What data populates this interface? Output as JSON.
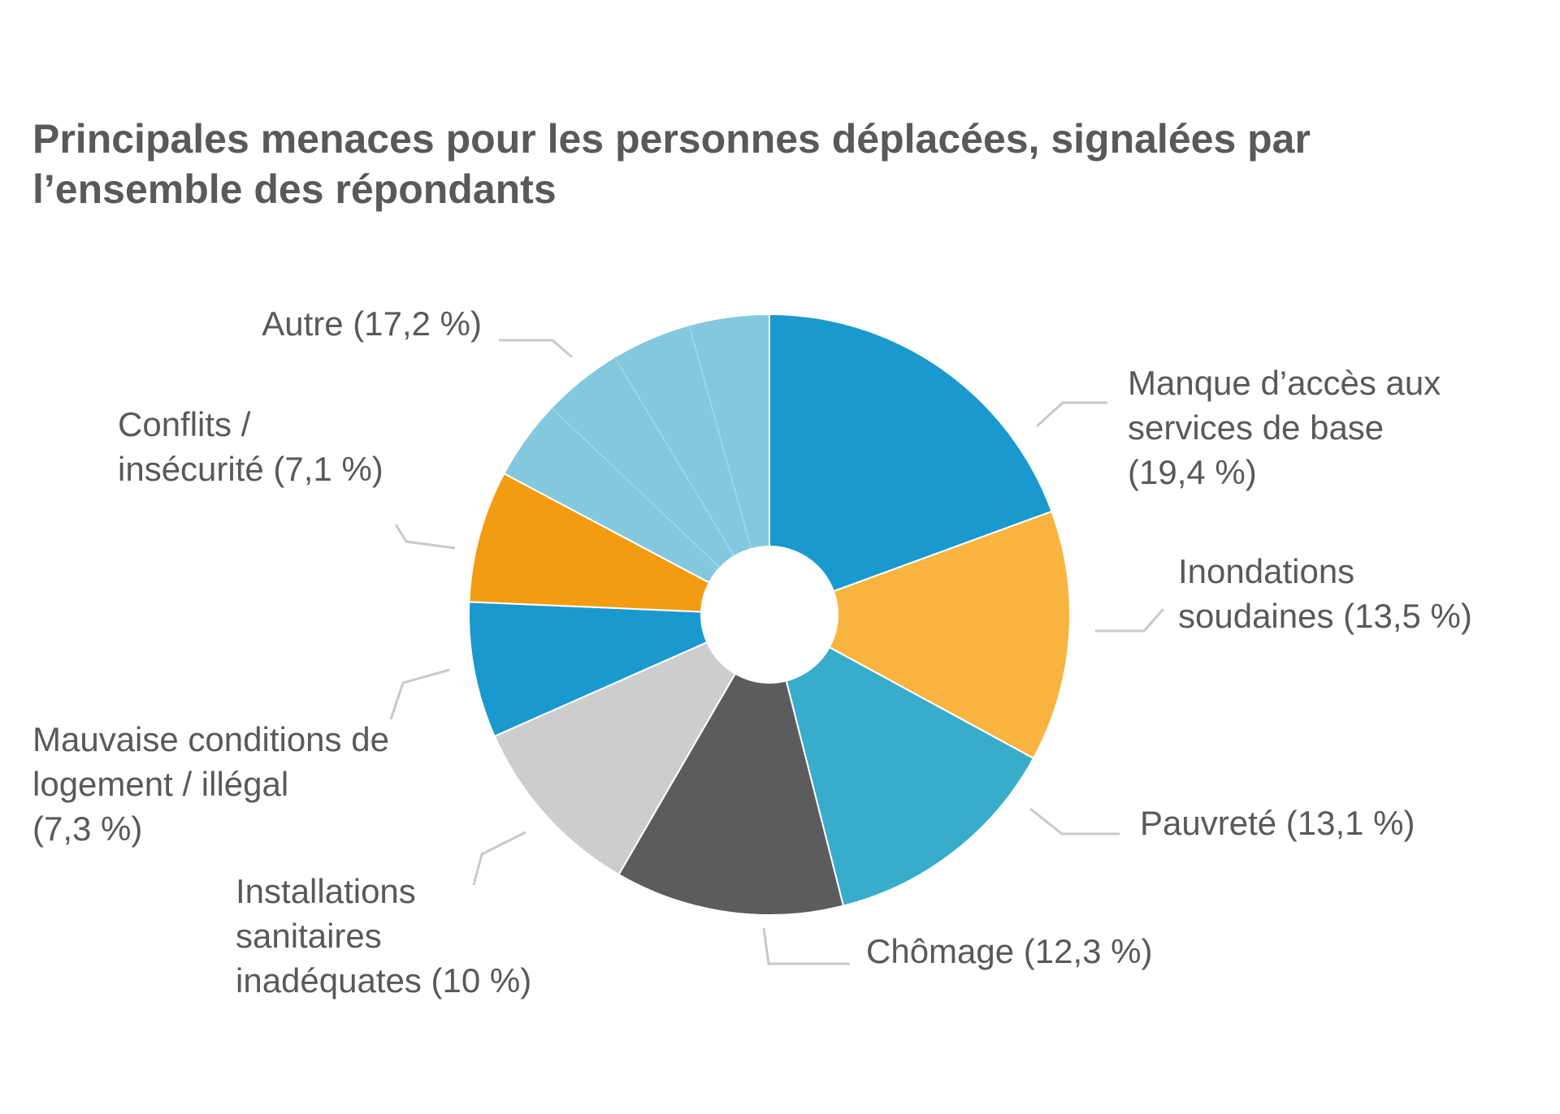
{
  "chart_data": {
    "type": "pie",
    "donut": true,
    "title": "Principales menaces pour les personnes déplacées, signalées par l’ensemble des répondants",
    "unit": "%",
    "slices": [
      {
        "label_lines": [
          "Manque d’accès aux",
          "services de base",
          "(19,4 %)"
        ],
        "value": 19.4,
        "color": "#1a99cf"
      },
      {
        "label_lines": [
          "Inondations",
          "soudaines (13,5 %)"
        ],
        "value": 13.5,
        "color": "#f9b440"
      },
      {
        "label_lines": [
          "Pauvreté (13,1 %)"
        ],
        "value": 13.1,
        "color": "#37adcb"
      },
      {
        "label_lines": [
          "Chômage (12,3 %)"
        ],
        "value": 12.3,
        "color": "#5c5b5d"
      },
      {
        "label_lines": [
          "Installations",
          "sanitaires",
          "inadéquates (10 %)"
        ],
        "value": 10.0,
        "color": "#cdcdcd"
      },
      {
        "label_lines": [
          "Mauvaise conditions de",
          "logement / illégal",
          "(7,3 %)"
        ],
        "value": 7.3,
        "color": "#1a99cf"
      },
      {
        "label_lines": [
          "Conflits /",
          "insécurité (7,1 %)"
        ],
        "value": 7.1,
        "color": "#f39c12"
      },
      {
        "label_lines": [
          "Autre (17,2 %)"
        ],
        "value": 17.2,
        "color": "#83c8dd",
        "sub_divisions": 4
      }
    ],
    "start_angle_deg": 0,
    "direction": "clockwise",
    "legend": "none"
  }
}
